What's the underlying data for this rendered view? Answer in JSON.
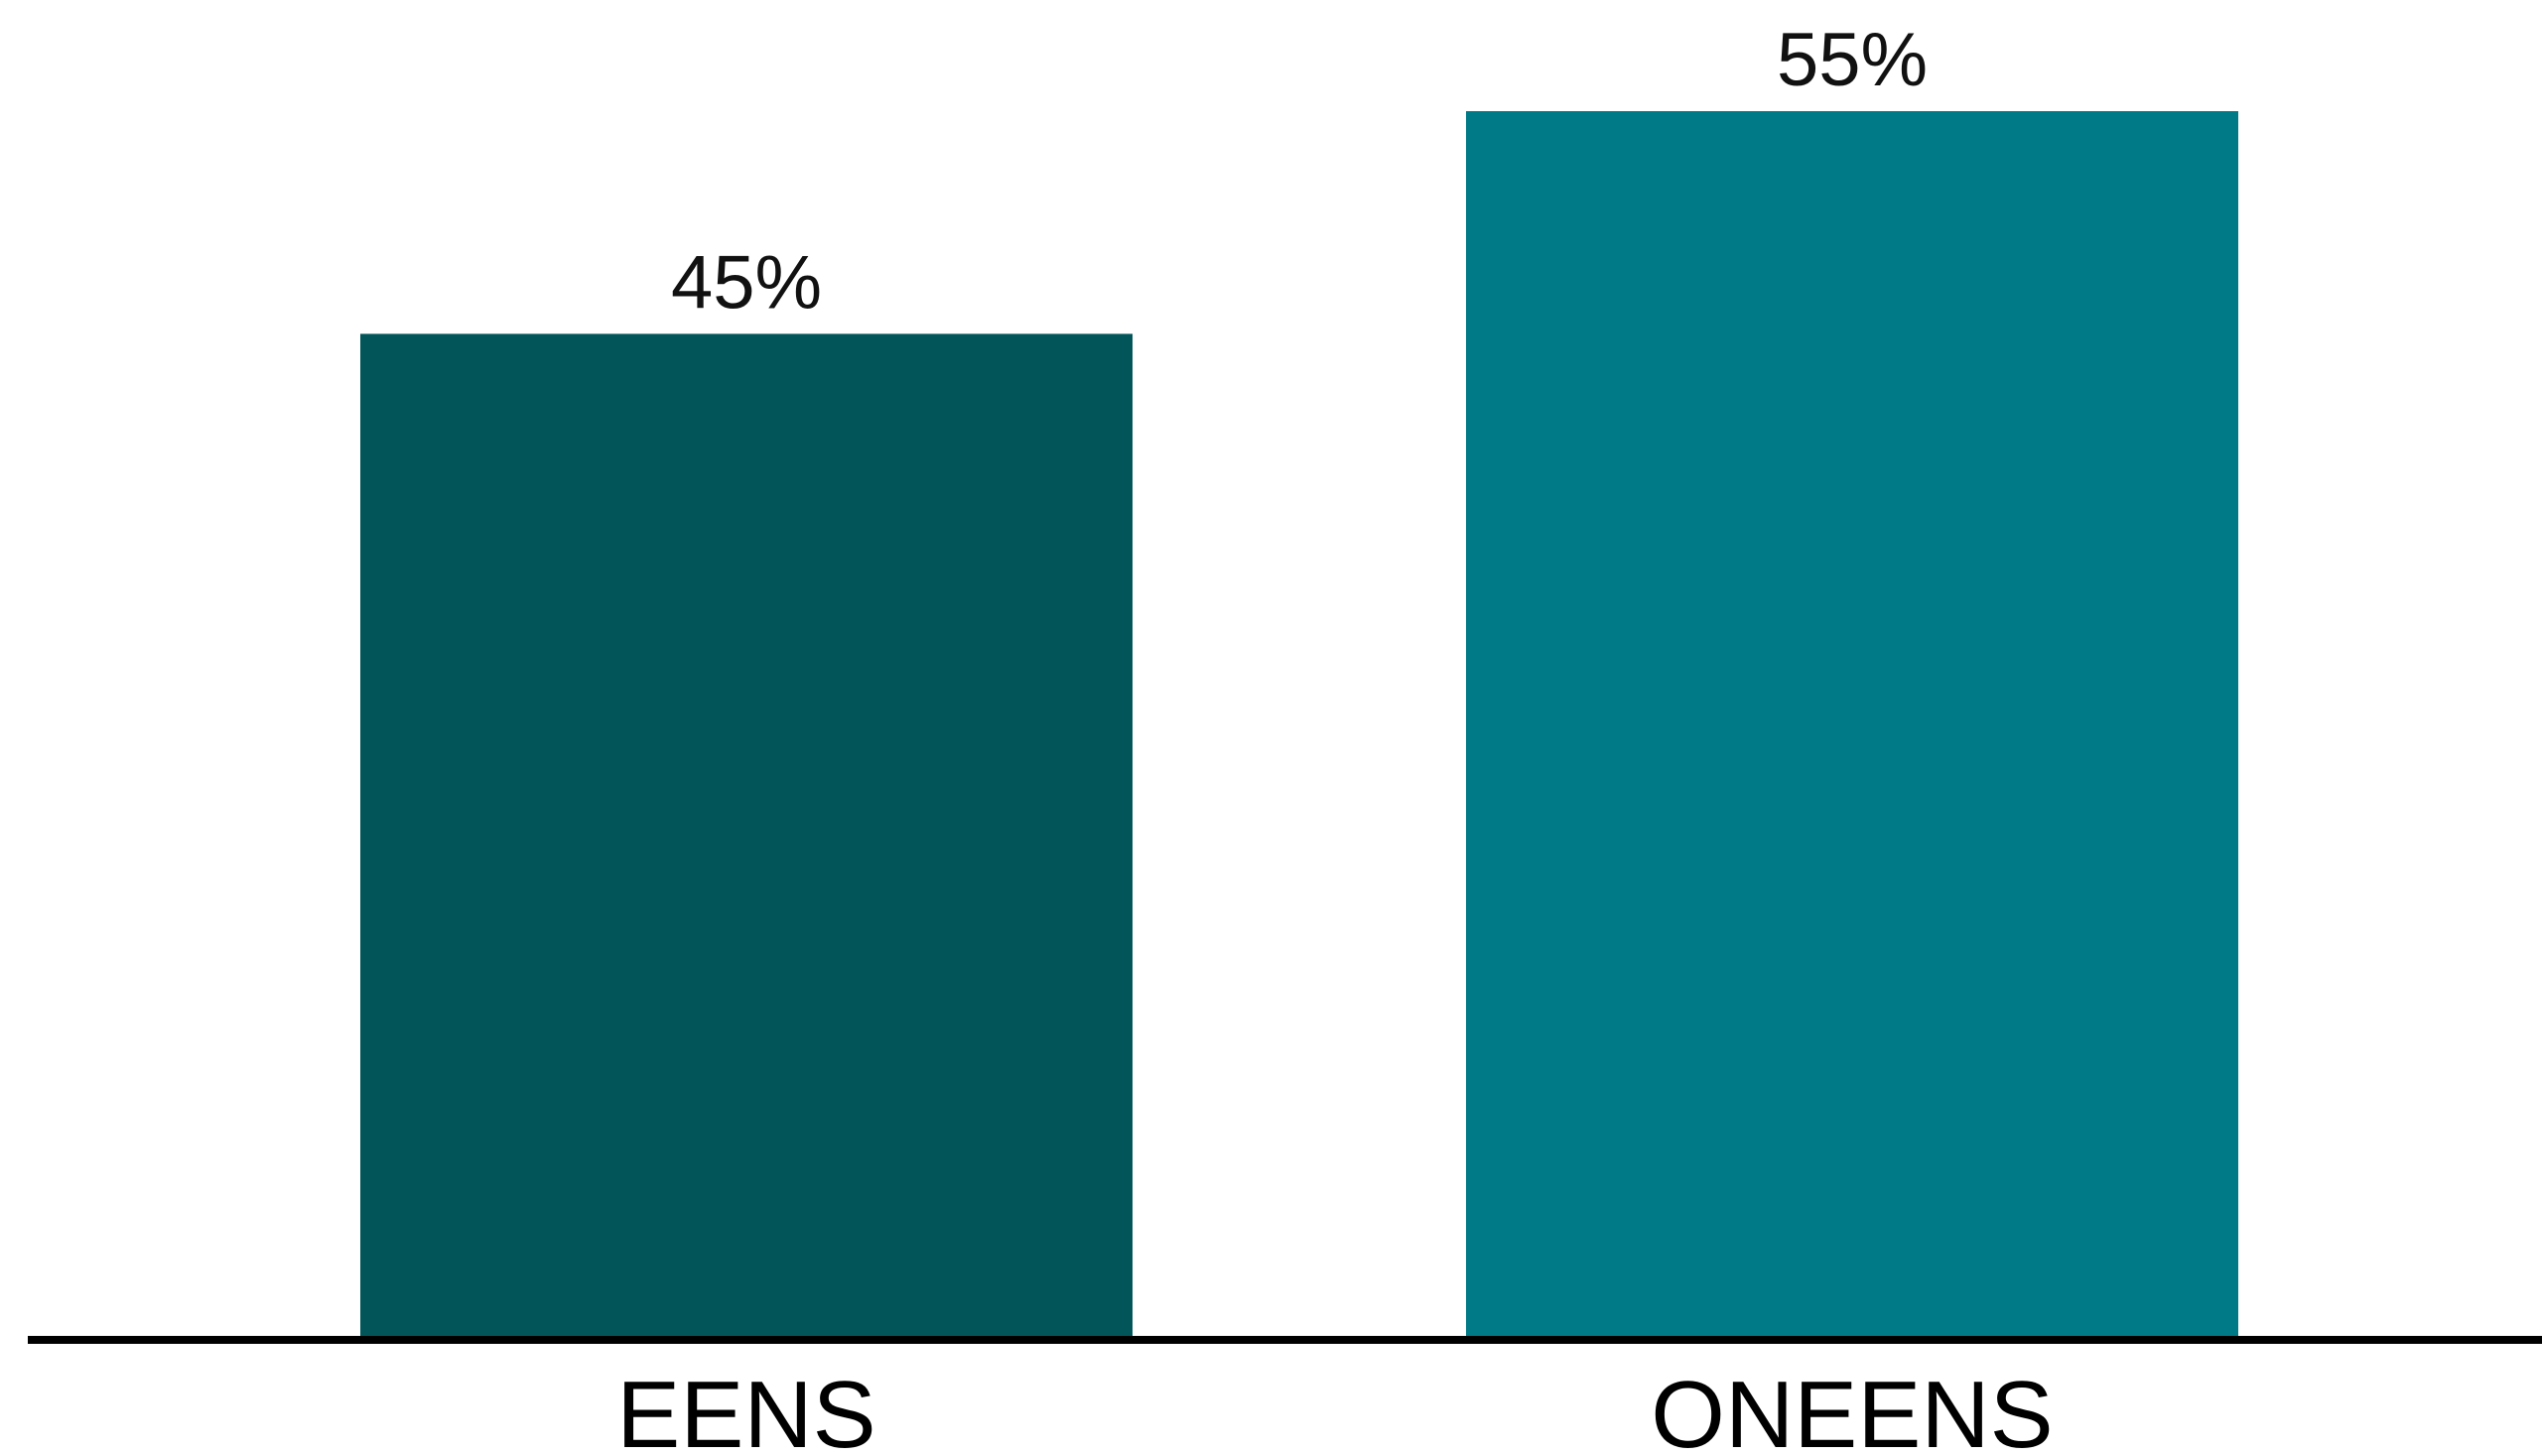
{
  "chart_data": {
    "type": "bar",
    "title": "",
    "xlabel": "",
    "ylabel": "",
    "categories": [
      "EENS",
      "ONEENS"
    ],
    "values": [
      45,
      55
    ],
    "value_labels": [
      "45%",
      "55%"
    ],
    "unit": "%",
    "ylim": [
      0,
      55
    ],
    "grid": false,
    "legend": "none",
    "colors": [
      "#02565a",
      "#007a86"
    ]
  }
}
